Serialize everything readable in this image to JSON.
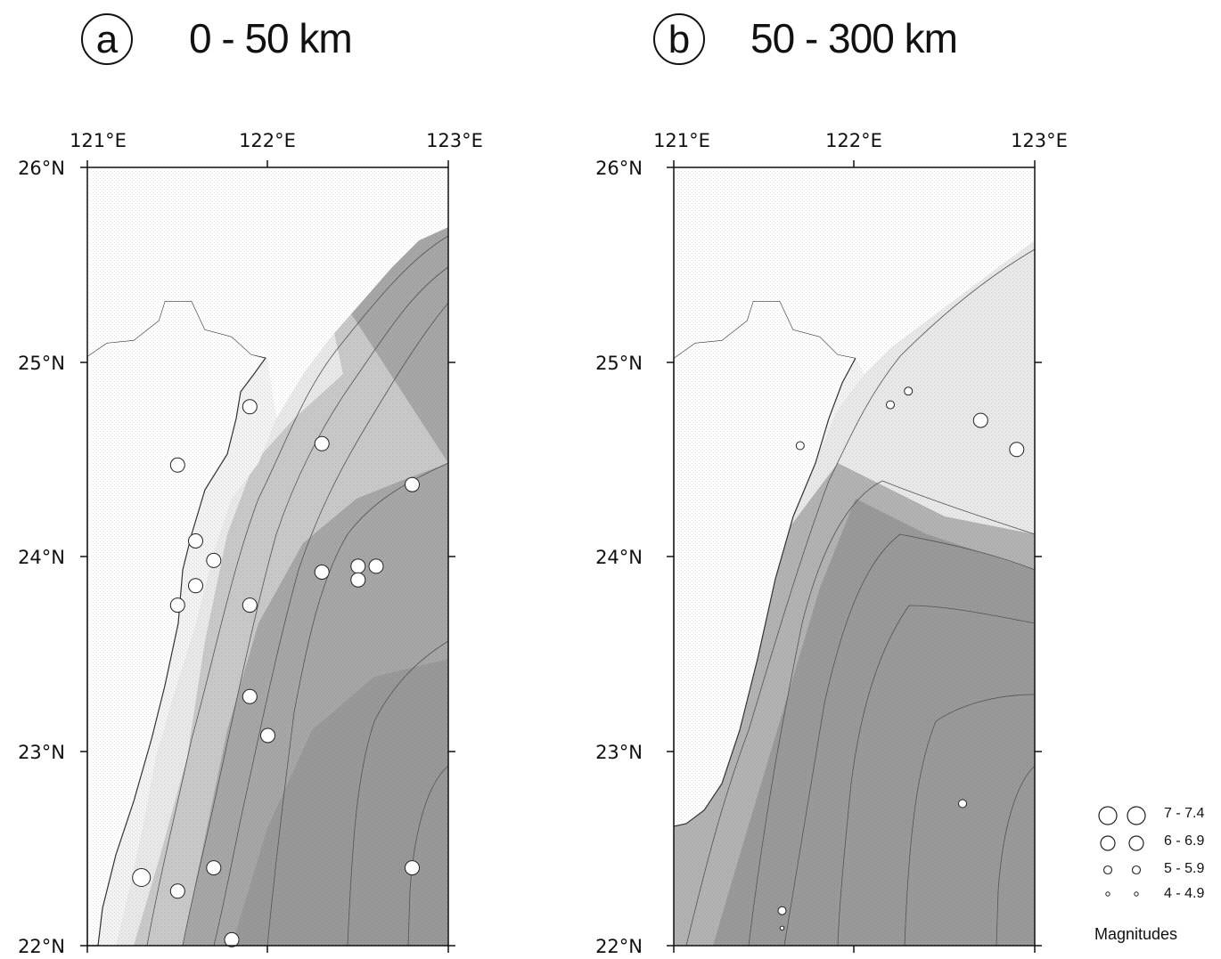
{
  "panel_a": {
    "letter": "a",
    "title": "0 - 50 km",
    "lon_ticks": [
      "121°E",
      "122°E",
      "123°E"
    ],
    "lat_ticks": [
      "26°N",
      "25°N",
      "24°N",
      "23°N",
      "22°N"
    ]
  },
  "panel_b": {
    "letter": "b",
    "title": "50 - 300 km",
    "lon_ticks": [
      "121°E",
      "122°E",
      "123°E"
    ],
    "lat_ticks": [
      "26°N",
      "25°N",
      "24°N",
      "23°N",
      "22°N"
    ]
  },
  "legend": {
    "title": "Magnitudes",
    "classes": [
      {
        "label": "7 - 7.4",
        "magnitude_min": 7.0,
        "magnitude_max": 7.4
      },
      {
        "label": "6 - 6.9",
        "magnitude_min": 6.0,
        "magnitude_max": 6.9
      },
      {
        "label": "5 - 5.9",
        "magnitude_min": 5.0,
        "magnitude_max": 5.9
      },
      {
        "label": "4 - 4.9",
        "magnitude_min": 4.0,
        "magnitude_max": 4.9
      }
    ]
  },
  "map_extent": {
    "lon_min": 121,
    "lon_max": 123,
    "lat_min": 22,
    "lat_max": 26
  },
  "colors": {
    "land": "#ffffff",
    "shelf": "#e6e6e6",
    "slope": "#c4c4c4",
    "deep": "#9c9c9c",
    "event_fill": "#ffffff",
    "event_stroke": "#222222"
  },
  "selected_events": {
    "panel_a": [
      {
        "lon": 121.9,
        "lat": 23.28,
        "mag": 6.6
      },
      {
        "lon": 122.0,
        "lat": 23.08,
        "mag": 6.1
      },
      {
        "lon": 121.3,
        "lat": 22.35,
        "mag": 7.0
      },
      {
        "lon": 121.5,
        "lat": 22.28,
        "mag": 6.0
      },
      {
        "lon": 121.7,
        "lat": 22.4,
        "mag": 6.0
      },
      {
        "lon": 121.8,
        "lat": 22.03,
        "mag": 6.0
      },
      {
        "lon": 122.8,
        "lat": 22.4,
        "mag": 6.0
      },
      {
        "lon": 121.7,
        "lat": 23.98,
        "mag": 6.5
      },
      {
        "lon": 121.6,
        "lat": 23.85,
        "mag": 6.2
      },
      {
        "lon": 121.5,
        "lat": 23.75,
        "mag": 6.0
      },
      {
        "lon": 121.9,
        "lat": 23.75,
        "mag": 6.0
      },
      {
        "lon": 122.3,
        "lat": 23.92,
        "mag": 6.5
      },
      {
        "lon": 122.5,
        "lat": 23.95,
        "mag": 6.2
      },
      {
        "lon": 122.6,
        "lat": 23.95,
        "mag": 6.5
      },
      {
        "lon": 122.5,
        "lat": 23.88,
        "mag": 6.2
      },
      {
        "lon": 122.3,
        "lat": 24.58,
        "mag": 6.2
      },
      {
        "lon": 121.9,
        "lat": 24.77,
        "mag": 6.0
      },
      {
        "lon": 121.5,
        "lat": 24.47,
        "mag": 6.0
      },
      {
        "lon": 122.8,
        "lat": 24.37,
        "mag": 6.0
      },
      {
        "lon": 121.6,
        "lat": 24.08,
        "mag": 6.0
      }
    ],
    "panel_b": [
      {
        "lon": 122.7,
        "lat": 24.7,
        "mag": 6.0
      },
      {
        "lon": 122.9,
        "lat": 24.55,
        "mag": 6.0
      },
      {
        "lon": 122.3,
        "lat": 24.85,
        "mag": 5.5
      },
      {
        "lon": 122.2,
        "lat": 24.78,
        "mag": 5.2
      },
      {
        "lon": 121.7,
        "lat": 24.57,
        "mag": 5.2
      },
      {
        "lon": 122.6,
        "lat": 22.73,
        "mag": 5.0
      },
      {
        "lon": 121.6,
        "lat": 22.18,
        "mag": 5.0
      },
      {
        "lon": 121.6,
        "lat": 22.09,
        "mag": 4.8
      }
    ]
  }
}
